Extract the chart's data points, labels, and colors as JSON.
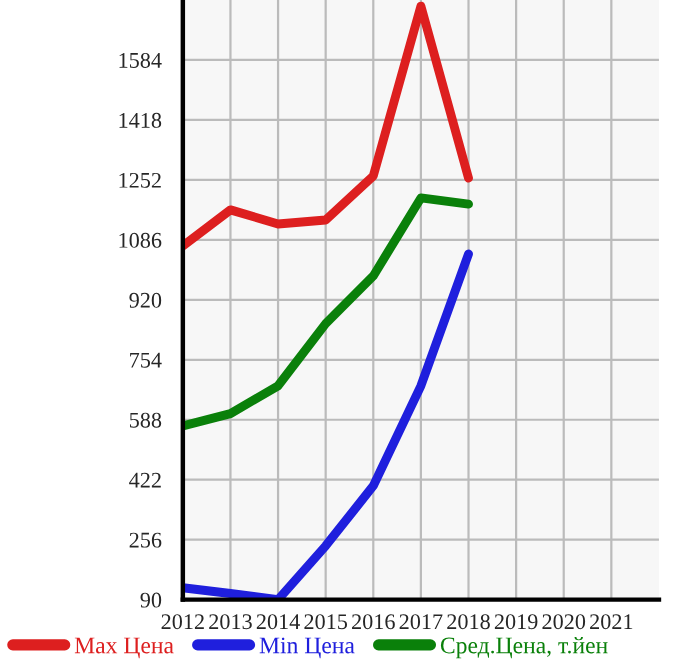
{
  "chart_data": {
    "type": "line",
    "x": [
      2012,
      2013,
      2014,
      2015,
      2016,
      2017,
      2018
    ],
    "series": [
      {
        "name": "Max Цена",
        "color": "#dd1f1f",
        "values": [
          1069,
          1169,
          1130,
          1141,
          1263,
          1733,
          1257
        ]
      },
      {
        "name": "Min Цена",
        "color": "#1f1fdd",
        "values": [
          123,
          107,
          90,
          239,
          405,
          682,
          1047
        ]
      },
      {
        "name": "Сред.Цена, т.йен",
        "color": "#0a800a",
        "values": [
          571,
          605,
          682,
          854,
          986,
          1202,
          1185
        ]
      }
    ],
    "xlim": [
      2012,
      2022
    ],
    "xticks": [
      2012,
      2013,
      2014,
      2015,
      2016,
      2017,
      2018,
      2019,
      2020,
      2021
    ],
    "ylim": [
      90,
      1750
    ],
    "yticks": [
      90,
      256,
      422,
      588,
      754,
      920,
      1086,
      1252,
      1418,
      1584
    ],
    "grid": true,
    "legend": "bottom",
    "marker": "none",
    "line_style": "solid"
  }
}
